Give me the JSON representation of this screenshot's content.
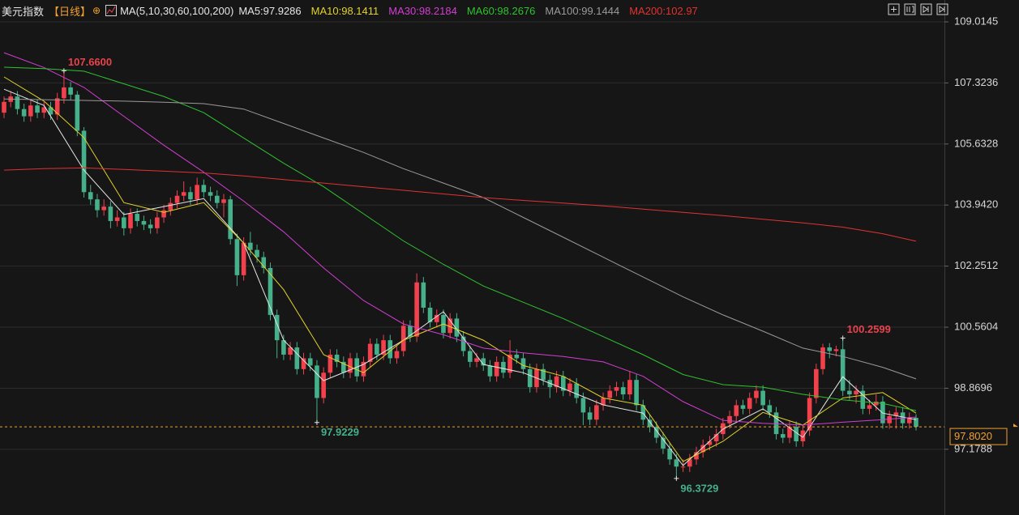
{
  "chart_data": {
    "type": "candlestick",
    "title": "美元指数",
    "period": "【日线】",
    "indicator": "MA(5,10,30,60,100,200)",
    "up_color": "#f0414c",
    "down_color": "#45b08a",
    "grid": true,
    "ylim": [
      95.36,
      109.62
    ],
    "yticks": [
      97.1788,
      98.8696,
      100.5604,
      102.2512,
      {
        "value": 103.942,
        "label": "103.9420"
      },
      105.6328,
      107.3236,
      109.0145
    ],
    "candles": [
      [
        106.5,
        106.95,
        106.35,
        106.8
      ],
      [
        106.8,
        107.1,
        106.65,
        106.95
      ],
      [
        106.95,
        107.1,
        106.45,
        106.6
      ],
      [
        106.6,
        106.75,
        106.25,
        106.4
      ],
      [
        106.4,
        106.85,
        106.25,
        106.7
      ],
      [
        106.7,
        106.85,
        106.35,
        106.5
      ],
      [
        106.5,
        106.8,
        106.35,
        106.65
      ],
      [
        106.65,
        106.8,
        106.3,
        106.45
      ],
      [
        106.45,
        107.05,
        106.3,
        106.9
      ],
      [
        106.9,
        107.66,
        106.75,
        107.2
      ],
      [
        107.2,
        107.35,
        106.85,
        107.0
      ],
      [
        107.0,
        107.1,
        105.85,
        106.0
      ],
      [
        106.0,
        106.1,
        104.15,
        104.3
      ],
      [
        104.3,
        104.5,
        103.95,
        104.1
      ],
      [
        104.1,
        104.25,
        103.6,
        103.8
      ],
      [
        103.8,
        104.1,
        103.65,
        103.9
      ],
      [
        103.9,
        104.05,
        103.3,
        103.5
      ],
      [
        103.5,
        103.8,
        103.35,
        103.6
      ],
      [
        103.6,
        103.75,
        103.1,
        103.3
      ],
      [
        103.3,
        103.85,
        103.15,
        103.7
      ],
      [
        103.7,
        103.85,
        103.35,
        103.5
      ],
      [
        103.5,
        103.65,
        103.25,
        103.4
      ],
      [
        103.4,
        103.55,
        103.15,
        103.3
      ],
      [
        103.3,
        103.75,
        103.15,
        103.6
      ],
      [
        103.6,
        103.95,
        103.45,
        103.8
      ],
      [
        103.8,
        104.15,
        103.65,
        104.0
      ],
      [
        104.0,
        104.35,
        103.85,
        104.2
      ],
      [
        104.2,
        104.6,
        104.05,
        104.3
      ],
      [
        104.3,
        104.45,
        103.95,
        104.1
      ],
      [
        104.1,
        104.7,
        103.95,
        104.5
      ],
      [
        104.5,
        104.65,
        104.15,
        104.3
      ],
      [
        104.3,
        104.45,
        104.05,
        104.2
      ],
      [
        104.2,
        104.35,
        103.85,
        104.0
      ],
      [
        104.0,
        104.25,
        103.6,
        104.1
      ],
      [
        104.1,
        104.2,
        102.85,
        103.0
      ],
      [
        103.0,
        103.15,
        101.7,
        102.0
      ],
      [
        102.0,
        103.05,
        101.85,
        102.9
      ],
      [
        102.9,
        103.2,
        102.55,
        102.7
      ],
      [
        102.7,
        102.85,
        102.35,
        102.5
      ],
      [
        102.5,
        102.65,
        102.05,
        102.2
      ],
      [
        102.2,
        102.35,
        100.75,
        100.9
      ],
      [
        100.9,
        101.05,
        99.7,
        100.2
      ],
      [
        100.2,
        100.35,
        99.65,
        99.8
      ],
      [
        99.8,
        100.15,
        99.65,
        100.0
      ],
      [
        100.0,
        100.15,
        99.25,
        99.4
      ],
      [
        99.4,
        99.85,
        99.25,
        99.7
      ],
      [
        99.7,
        99.85,
        99.35,
        99.5
      ],
      [
        99.5,
        99.65,
        97.9229,
        98.6
      ],
      [
        98.6,
        99.45,
        98.45,
        99.3
      ],
      [
        99.3,
        99.95,
        99.15,
        99.8
      ],
      [
        99.8,
        99.95,
        99.45,
        99.6
      ],
      [
        99.6,
        99.75,
        99.15,
        99.3
      ],
      [
        99.3,
        99.85,
        99.15,
        99.7
      ],
      [
        99.7,
        99.85,
        99.05,
        99.2
      ],
      [
        99.2,
        99.75,
        99.05,
        99.6
      ],
      [
        99.6,
        100.25,
        99.45,
        100.1
      ],
      [
        100.1,
        100.25,
        99.65,
        99.8
      ],
      [
        99.8,
        100.35,
        99.65,
        100.2
      ],
      [
        100.2,
        100.35,
        99.55,
        99.7
      ],
      [
        99.7,
        100.05,
        99.55,
        99.9
      ],
      [
        99.9,
        100.75,
        99.75,
        100.6
      ],
      [
        100.6,
        100.75,
        100.15,
        100.3
      ],
      [
        100.3,
        102.05,
        100.15,
        101.8
      ],
      [
        101.8,
        101.95,
        100.95,
        101.1
      ],
      [
        101.1,
        101.25,
        100.55,
        100.7
      ],
      [
        100.7,
        101.05,
        100.55,
        100.9
      ],
      [
        100.9,
        101.05,
        100.25,
        100.4
      ],
      [
        100.4,
        100.95,
        100.25,
        100.8
      ],
      [
        100.8,
        100.95,
        100.15,
        100.3
      ],
      [
        100.3,
        100.45,
        99.75,
        99.9
      ],
      [
        99.9,
        100.05,
        99.45,
        99.6
      ],
      [
        99.6,
        99.85,
        99.45,
        99.7
      ],
      [
        99.7,
        99.85,
        99.35,
        99.5
      ],
      [
        99.5,
        99.65,
        99.05,
        99.2
      ],
      [
        99.2,
        99.75,
        99.05,
        99.6
      ],
      [
        99.6,
        99.75,
        99.15,
        99.3
      ],
      [
        99.3,
        100.2,
        99.15,
        99.8
      ],
      [
        99.8,
        99.95,
        99.55,
        99.7
      ],
      [
        99.7,
        99.85,
        99.25,
        99.4
      ],
      [
        99.4,
        99.55,
        98.75,
        98.9
      ],
      [
        98.9,
        99.55,
        98.75,
        99.4
      ],
      [
        99.4,
        99.55,
        98.95,
        99.1
      ],
      [
        99.1,
        99.25,
        98.6,
        98.9
      ],
      [
        98.9,
        99.35,
        98.75,
        99.2
      ],
      [
        99.2,
        99.35,
        98.65,
        98.8
      ],
      [
        98.8,
        99.15,
        98.65,
        99.0
      ],
      [
        99.0,
        99.15,
        98.45,
        98.6
      ],
      [
        98.6,
        98.75,
        97.85,
        98.2
      ],
      [
        98.2,
        98.35,
        97.85,
        98.0
      ],
      [
        98.0,
        98.55,
        97.85,
        98.4
      ],
      [
        98.4,
        98.75,
        98.25,
        98.6
      ],
      [
        98.6,
        98.95,
        98.45,
        98.8
      ],
      [
        98.8,
        99.05,
        98.65,
        98.9
      ],
      [
        98.9,
        99.05,
        98.55,
        98.7
      ],
      [
        98.7,
        99.35,
        98.55,
        99.1
      ],
      [
        99.1,
        99.25,
        98.25,
        98.4
      ],
      [
        98.4,
        98.55,
        97.85,
        98.0
      ],
      [
        98.0,
        98.15,
        97.65,
        97.8
      ],
      [
        97.8,
        97.95,
        97.35,
        97.5
      ],
      [
        97.5,
        97.65,
        97.05,
        97.2
      ],
      [
        97.2,
        97.35,
        96.75,
        96.9
      ],
      [
        96.9,
        97.05,
        96.3729,
        96.7
      ],
      [
        96.7,
        96.9,
        96.55,
        96.7
      ],
      [
        96.7,
        97.05,
        96.55,
        96.9
      ],
      [
        96.9,
        97.25,
        96.75,
        97.1
      ],
      [
        97.1,
        97.45,
        96.95,
        97.3
      ],
      [
        97.3,
        97.55,
        97.15,
        97.4
      ],
      [
        97.4,
        97.75,
        97.25,
        97.6
      ],
      [
        97.6,
        98.05,
        97.45,
        97.9
      ],
      [
        97.9,
        98.25,
        97.75,
        98.1
      ],
      [
        98.1,
        98.55,
        97.95,
        98.4
      ],
      [
        98.4,
        98.55,
        98.15,
        98.3
      ],
      [
        98.3,
        98.75,
        98.15,
        98.6
      ],
      [
        98.6,
        98.95,
        98.45,
        98.8
      ],
      [
        98.8,
        98.95,
        98.25,
        98.4
      ],
      [
        98.4,
        98.55,
        98.05,
        98.2
      ],
      [
        98.2,
        98.35,
        97.45,
        97.6
      ],
      [
        97.6,
        97.75,
        97.35,
        97.5
      ],
      [
        97.5,
        97.95,
        97.35,
        97.8
      ],
      [
        97.8,
        97.95,
        97.25,
        97.4
      ],
      [
        97.4,
        97.85,
        97.25,
        97.7
      ],
      [
        97.7,
        98.75,
        97.55,
        98.6
      ],
      [
        98.6,
        99.55,
        98.45,
        99.4
      ],
      [
        99.4,
        100.1,
        99.25,
        100.0
      ],
      [
        100.0,
        100.12,
        99.7,
        99.9
      ],
      [
        99.9,
        100.05,
        99.75,
        99.95
      ],
      [
        99.95,
        100.2599,
        98.65,
        98.8
      ],
      [
        98.8,
        99.1,
        98.55,
        98.7
      ],
      [
        98.7,
        98.95,
        98.45,
        98.8
      ],
      [
        98.8,
        98.95,
        98.15,
        98.3
      ],
      [
        98.3,
        98.55,
        98.15,
        98.4
      ],
      [
        98.4,
        98.7,
        98.25,
        98.5
      ],
      [
        98.5,
        98.65,
        97.75,
        97.9
      ],
      [
        97.9,
        98.25,
        97.75,
        98.1
      ],
      [
        98.1,
        98.35,
        97.75,
        98.2
      ],
      [
        98.2,
        98.35,
        97.75,
        97.9
      ],
      [
        97.9,
        98.2,
        97.75,
        98.05
      ],
      [
        98.05,
        98.15,
        97.7,
        97.802
      ]
    ],
    "series": [
      {
        "name": "MA5:97.9286",
        "color": "#e6e6e6",
        "x": [
          0,
          6,
          12,
          18,
          24,
          30,
          36,
          42,
          48,
          54,
          60,
          66,
          72,
          78,
          84,
          90,
          96,
          102,
          108,
          114,
          120,
          126,
          132,
          137
        ],
        "values": [
          107.15,
          106.7,
          104.91,
          103.68,
          103.9,
          104.12,
          102.89,
          100.2,
          99.08,
          99.53,
          100.2,
          100.99,
          99.53,
          99.3,
          98.86,
          98.41,
          98.18,
          96.73,
          97.74,
          98.3,
          97.51,
          99.19,
          98.18,
          98.0
        ]
      },
      {
        "name": "MA10:98.1411",
        "color": "#e3d22a",
        "x": [
          0,
          6,
          12,
          18,
          24,
          30,
          36,
          42,
          48,
          54,
          60,
          66,
          72,
          78,
          84,
          90,
          96,
          102,
          108,
          114,
          120,
          126,
          132,
          137
        ],
        "values": [
          107.49,
          106.82,
          105.81,
          104.01,
          103.74,
          104.01,
          102.89,
          101.6,
          99.8,
          99.3,
          100.2,
          100.65,
          100.2,
          99.5,
          99.2,
          98.6,
          98.4,
          96.84,
          97.4,
          98.2,
          97.85,
          98.6,
          98.75,
          98.18
        ]
      },
      {
        "name": "MA30:98.2184",
        "color": "#d23ed2",
        "x": [
          0,
          6,
          12,
          18,
          24,
          30,
          36,
          42,
          48,
          54,
          60,
          66,
          72,
          78,
          84,
          90,
          96,
          102,
          108,
          114,
          120,
          126,
          132,
          137
        ],
        "values": [
          108.16,
          107.75,
          107.2,
          106.4,
          105.6,
          104.85,
          104.05,
          103.2,
          102.2,
          101.3,
          100.65,
          100.35,
          99.98,
          99.85,
          99.75,
          99.6,
          99.2,
          98.5,
          97.98,
          97.9,
          97.85,
          97.93,
          98.0,
          98.07
        ]
      },
      {
        "name": "MA60:98.2676",
        "color": "#2fc22f",
        "x": [
          0,
          6,
          12,
          18,
          24,
          30,
          36,
          42,
          48,
          54,
          60,
          66,
          72,
          78,
          84,
          90,
          96,
          102,
          108,
          114,
          120,
          126,
          132,
          137
        ],
        "values": [
          107.76,
          107.72,
          107.65,
          107.3,
          106.95,
          106.5,
          105.8,
          105.1,
          104.45,
          103.7,
          102.95,
          102.3,
          101.7,
          101.25,
          100.8,
          100.3,
          99.8,
          99.25,
          98.97,
          98.9,
          98.7,
          98.55,
          98.45,
          98.25
        ]
      },
      {
        "name": "MA100:99.1444",
        "color": "#9a9a9a",
        "x": [
          0,
          6,
          12,
          18,
          24,
          30,
          36,
          42,
          48,
          54,
          60,
          66,
          72,
          78,
          84,
          90,
          96,
          102,
          108,
          114,
          120,
          126,
          132,
          137
        ],
        "values": [
          106.88,
          106.86,
          106.84,
          106.82,
          106.79,
          106.75,
          106.6,
          106.2,
          105.8,
          105.4,
          104.95,
          104.55,
          104.15,
          103.6,
          103.05,
          102.5,
          101.95,
          101.4,
          100.9,
          100.45,
          99.98,
          99.75,
          99.45,
          99.13
        ]
      },
      {
        "name": "MA200:102.97",
        "color": "#e23232",
        "x": [
          0,
          6,
          12,
          18,
          24,
          30,
          36,
          42,
          48,
          54,
          60,
          66,
          72,
          78,
          84,
          90,
          96,
          102,
          108,
          114,
          120,
          126,
          132,
          137
        ],
        "values": [
          104.91,
          104.95,
          104.97,
          104.93,
          104.88,
          104.83,
          104.75,
          104.65,
          104.55,
          104.45,
          104.35,
          104.25,
          104.15,
          104.07,
          104.0,
          103.92,
          103.83,
          103.74,
          103.65,
          103.55,
          103.45,
          103.33,
          103.15,
          102.94
        ]
      }
    ],
    "annotations": [
      {
        "text": "107.6600",
        "value": 107.66,
        "color": "#e8424c"
      },
      {
        "text": "97.9229",
        "value": 97.9229,
        "color": "#45b08a"
      },
      {
        "text": "96.3729",
        "value": 96.3729,
        "color": "#45b08a"
      },
      {
        "text": "100.2599",
        "value": 100.2599,
        "color": "#e8424c"
      }
    ],
    "last_price": {
      "value": 97.802,
      "label": "97.8020",
      "color": "#f0a030"
    }
  }
}
